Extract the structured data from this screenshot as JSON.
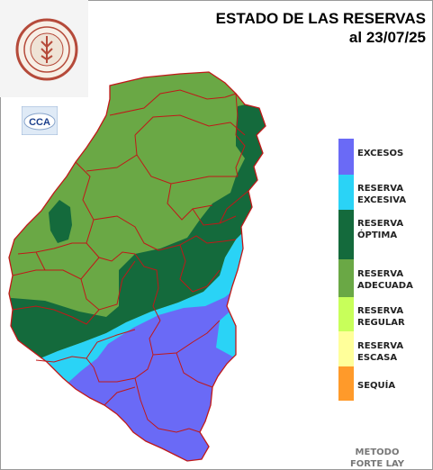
{
  "title": {
    "line1": "ESTADO DE LAS RESERVAS",
    "line2": "al 23/07/25"
  },
  "logo": {
    "seal_text": "BOLSA DE CEREALES DE ENTRE RÍOS",
    "year": "1979"
  },
  "badge": {
    "text": "CCA"
  },
  "legend": {
    "items": [
      {
        "line1": "EXCESOS",
        "line2": "",
        "color": "#6a6af6"
      },
      {
        "line1": "RESERVA",
        "line2": "EXCESIVA",
        "color": "#2ad3f6"
      },
      {
        "line1": "RESERVA",
        "line2": "ÓPTIMA",
        "color": "#146a3c"
      },
      {
        "line1": "RESERVA",
        "line2": "ADECUADA",
        "color": "#6aa845"
      },
      {
        "line1": "RESERVA",
        "line2": "REGULAR",
        "color": "#c8ff5a"
      },
      {
        "line1": "RESERVA",
        "line2": "ESCASA",
        "color": "#ffff9a"
      },
      {
        "line1": "SEQUÍA",
        "line2": "",
        "color": "#ff9a2a"
      }
    ]
  },
  "method": {
    "line1": "METODO",
    "line2": "FORTE LAY"
  },
  "colors": {
    "excesos": "#6a6af6",
    "excesiva": "#2ad3f6",
    "optima": "#146a3c",
    "adecuada": "#6aa845",
    "borders": "#c01818"
  }
}
